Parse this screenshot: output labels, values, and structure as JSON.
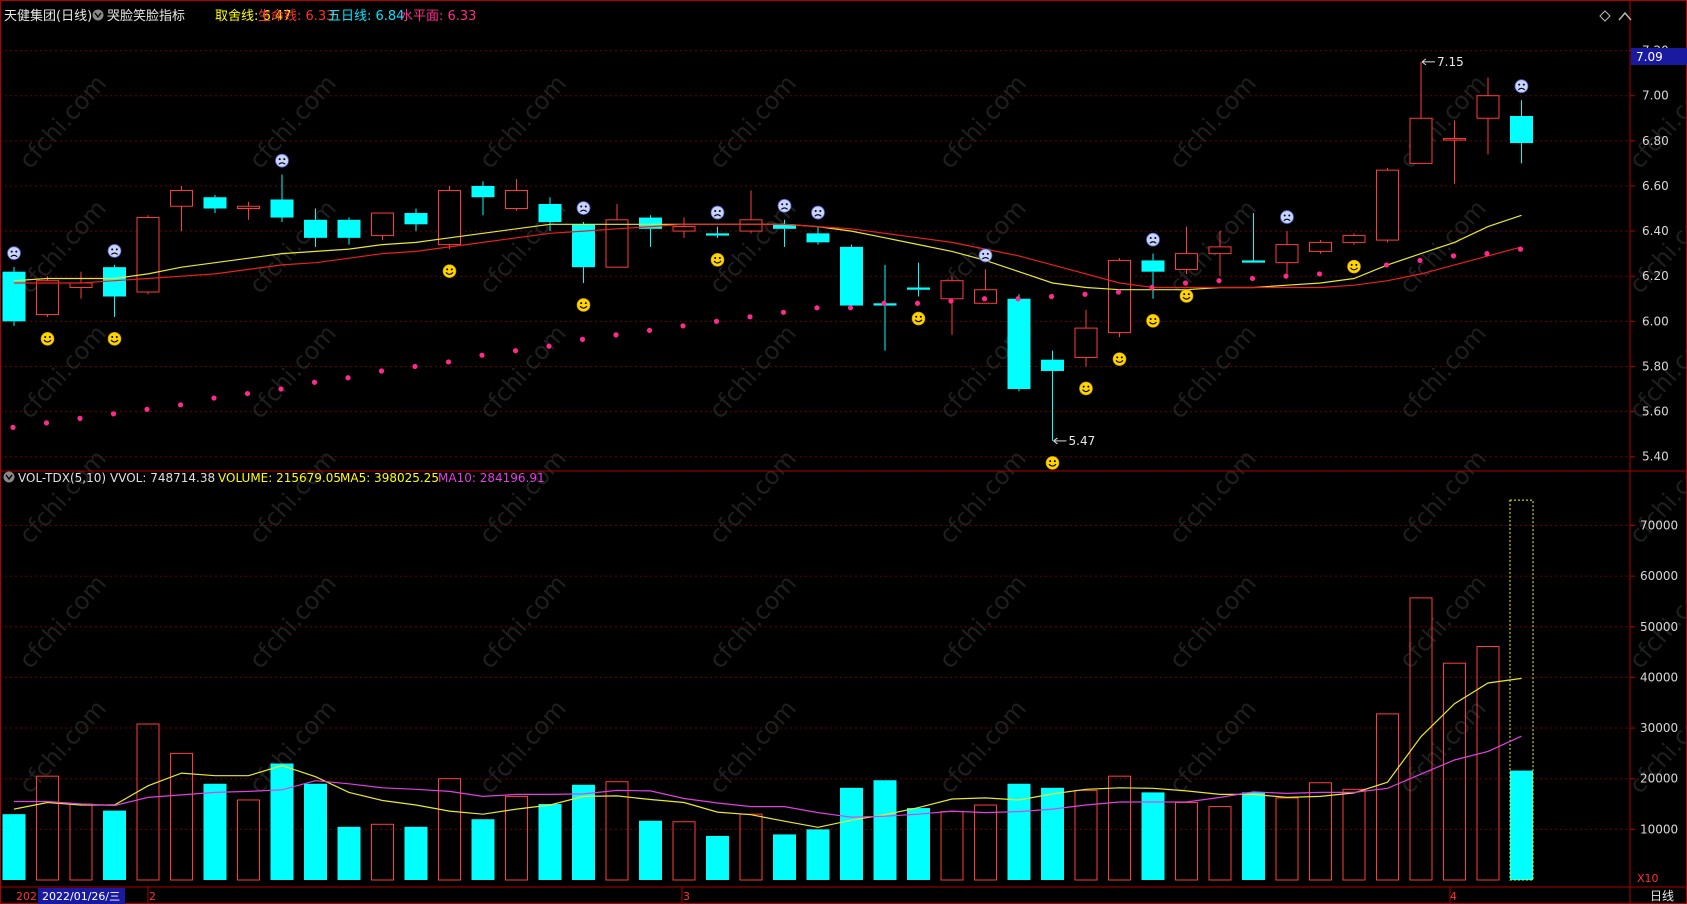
{
  "header": {
    "stock_title": "天健集团(日线)",
    "indicator_name": "哭脸笑脸指标",
    "params": [
      {
        "label": "取舍线: 6.47",
        "color": "#ffff00"
      },
      {
        "label": "生命线: 6.33",
        "color": "#ff3030"
      },
      {
        "label": "五日线: 6.84",
        "color": "#00e5ff"
      },
      {
        "label": "水平面: 6.33",
        "color": "#ff2a8c"
      }
    ]
  },
  "volume_header": {
    "name": "VOL-TDX(5,10)",
    "vvol": "VVOL: 748714.38",
    "volume": "VOLUME: 215679.05",
    "ma5": "MA5: 398025.25",
    "ma10": "MA10: 284196.91"
  },
  "price_badge": "7.09",
  "x10_label": "X10",
  "bottom_bar": {
    "year_label": "2022",
    "date_label": "2022/01/26/三",
    "month_2": "2",
    "month_3": "3",
    "month_4": "4",
    "period_button": "日线"
  },
  "colors": {
    "up": "#ff3c3c",
    "down": "#00ffff",
    "ma_yellow": "#e8e830",
    "ma_red": "#e82020",
    "dot": "#ff2a8c",
    "grid": "#6a0000",
    "axis": "#b00000"
  },
  "chart_data": [
    {
      "type": "candlestick",
      "y_ticks": [
        5.4,
        5.6,
        5.8,
        6.0,
        6.2,
        6.4,
        6.6,
        6.8,
        7.0,
        7.2
      ],
      "ylim": [
        5.35,
        7.3
      ],
      "annotations": [
        {
          "text": "7.15",
          "value": 7.15
        },
        {
          "text": "5.47",
          "value": 5.47
        }
      ],
      "candles": [
        {
          "o": 6.22,
          "c": 6.0,
          "h": 6.24,
          "l": 5.98
        },
        {
          "o": 6.03,
          "c": 6.18,
          "h": 6.2,
          "l": 6.02
        },
        {
          "o": 6.15,
          "c": 6.17,
          "h": 6.22,
          "l": 6.1
        },
        {
          "o": 6.24,
          "c": 6.11,
          "h": 6.25,
          "l": 6.02
        },
        {
          "o": 6.13,
          "c": 6.46,
          "h": 6.47,
          "l": 6.12
        },
        {
          "o": 6.51,
          "c": 6.58,
          "h": 6.6,
          "l": 6.4
        },
        {
          "o": 6.55,
          "c": 6.5,
          "h": 6.56,
          "l": 6.48
        },
        {
          "o": 6.5,
          "c": 6.51,
          "h": 6.53,
          "l": 6.45
        },
        {
          "o": 6.54,
          "c": 6.46,
          "h": 6.65,
          "l": 6.44
        },
        {
          "o": 6.45,
          "c": 6.37,
          "h": 6.5,
          "l": 6.33
        },
        {
          "o": 6.45,
          "c": 6.37,
          "h": 6.46,
          "l": 6.34
        },
        {
          "o": 6.38,
          "c": 6.48,
          "h": 6.48,
          "l": 6.36
        },
        {
          "o": 6.48,
          "c": 6.43,
          "h": 6.5,
          "l": 6.4
        },
        {
          "o": 6.34,
          "c": 6.58,
          "h": 6.6,
          "l": 6.32
        },
        {
          "o": 6.6,
          "c": 6.55,
          "h": 6.62,
          "l": 6.47
        },
        {
          "o": 6.5,
          "c": 6.58,
          "h": 6.63,
          "l": 6.49
        },
        {
          "o": 6.52,
          "c": 6.44,
          "h": 6.55,
          "l": 6.4
        },
        {
          "o": 6.43,
          "c": 6.24,
          "h": 6.44,
          "l": 6.17
        },
        {
          "o": 6.24,
          "c": 6.45,
          "h": 6.52,
          "l": 6.24
        },
        {
          "o": 6.46,
          "c": 6.41,
          "h": 6.47,
          "l": 6.33
        },
        {
          "o": 6.4,
          "c": 6.42,
          "h": 6.46,
          "l": 6.37
        },
        {
          "o": 6.39,
          "c": 6.38,
          "h": 6.42,
          "l": 6.37
        },
        {
          "o": 6.4,
          "c": 6.45,
          "h": 6.58,
          "l": 6.39
        },
        {
          "o": 6.43,
          "c": 6.41,
          "h": 6.45,
          "l": 6.33
        },
        {
          "o": 6.39,
          "c": 6.35,
          "h": 6.42,
          "l": 6.34
        },
        {
          "o": 6.33,
          "c": 6.07,
          "h": 6.34,
          "l": 6.06
        },
        {
          "o": 6.08,
          "c": 6.07,
          "h": 6.25,
          "l": 5.87
        },
        {
          "o": 6.15,
          "c": 6.14,
          "h": 6.26,
          "l": 6.11
        },
        {
          "o": 6.1,
          "c": 6.18,
          "h": 6.2,
          "l": 5.94
        },
        {
          "o": 6.08,
          "c": 6.14,
          "h": 6.23,
          "l": 6.08
        },
        {
          "o": 6.1,
          "c": 5.7,
          "h": 6.12,
          "l": 5.69
        },
        {
          "o": 5.83,
          "c": 5.78,
          "h": 5.87,
          "l": 5.47
        },
        {
          "o": 5.84,
          "c": 5.97,
          "h": 6.05,
          "l": 5.8
        },
        {
          "o": 5.95,
          "c": 6.27,
          "h": 6.28,
          "l": 5.93
        },
        {
          "o": 6.27,
          "c": 6.22,
          "h": 6.3,
          "l": 6.1
        },
        {
          "o": 6.23,
          "c": 6.3,
          "h": 6.42,
          "l": 6.21
        },
        {
          "o": 6.3,
          "c": 6.33,
          "h": 6.4,
          "l": 6.2
        },
        {
          "o": 6.27,
          "c": 6.26,
          "h": 6.48,
          "l": 6.26
        },
        {
          "o": 6.26,
          "c": 6.34,
          "h": 6.4,
          "l": 6.2
        },
        {
          "o": 6.31,
          "c": 6.35,
          "h": 6.36,
          "l": 6.3
        },
        {
          "o": 6.35,
          "c": 6.38,
          "h": 6.39,
          "l": 6.34
        },
        {
          "o": 6.36,
          "c": 6.67,
          "h": 6.68,
          "l": 6.35
        },
        {
          "o": 6.7,
          "c": 6.9,
          "h": 7.15,
          "l": 6.7
        },
        {
          "o": 6.81,
          "c": 6.81,
          "h": 6.89,
          "l": 6.61
        },
        {
          "o": 6.9,
          "c": 7.0,
          "h": 7.08,
          "l": 6.74
        },
        {
          "o": 6.91,
          "c": 6.79,
          "h": 6.98,
          "l": 6.7
        }
      ],
      "ma_yellow": [
        6.18,
        6.19,
        6.19,
        6.19,
        6.21,
        6.24,
        6.26,
        6.28,
        6.3,
        6.31,
        6.32,
        6.34,
        6.35,
        6.37,
        6.39,
        6.41,
        6.43,
        6.43,
        6.43,
        6.43,
        6.43,
        6.43,
        6.43,
        6.43,
        6.42,
        6.4,
        6.37,
        6.34,
        6.31,
        6.27,
        6.22,
        6.17,
        6.15,
        6.14,
        6.14,
        6.14,
        6.15,
        6.15,
        6.16,
        6.17,
        6.19,
        6.25,
        6.3,
        6.35,
        6.42,
        6.47
      ],
      "ma_red": [
        6.17,
        6.17,
        6.17,
        6.18,
        6.19,
        6.2,
        6.21,
        6.23,
        6.25,
        6.26,
        6.28,
        6.3,
        6.31,
        6.33,
        6.35,
        6.37,
        6.39,
        6.4,
        6.41,
        6.42,
        6.43,
        6.43,
        6.43,
        6.43,
        6.42,
        6.41,
        6.39,
        6.37,
        6.35,
        6.32,
        6.29,
        6.25,
        6.21,
        6.17,
        6.15,
        6.15,
        6.15,
        6.15,
        6.15,
        6.15,
        6.16,
        6.18,
        6.21,
        6.25,
        6.29,
        6.33
      ],
      "dots": [
        5.53,
        5.55,
        5.57,
        5.59,
        5.61,
        5.63,
        5.66,
        5.68,
        5.7,
        5.73,
        5.75,
        5.78,
        5.8,
        5.82,
        5.85,
        5.87,
        5.89,
        5.92,
        5.94,
        5.96,
        5.98,
        6.0,
        6.02,
        6.04,
        6.06,
        6.06,
        6.08,
        6.08,
        6.09,
        6.1,
        6.1,
        6.11,
        6.12,
        6.13,
        6.15,
        6.17,
        6.18,
        6.19,
        6.2,
        6.21,
        6.23,
        6.25,
        6.27,
        6.29,
        6.3,
        6.32
      ],
      "smiles": [
        1,
        3,
        13,
        17,
        21,
        27,
        31,
        32,
        33,
        34,
        35,
        40
      ],
      "frowns": [
        0,
        3,
        8,
        17,
        21,
        23,
        24,
        29,
        34,
        38,
        45
      ]
    },
    {
      "type": "bar",
      "y_ticks": [
        10000,
        20000,
        30000,
        40000,
        50000,
        60000,
        70000
      ],
      "ylim": [
        0,
        77000
      ],
      "volumes": [
        13000,
        20500,
        15000,
        13700,
        30800,
        25000,
        19000,
        15800,
        23000,
        19000,
        10500,
        11000,
        10500,
        20000,
        12000,
        16500,
        15000,
        18800,
        19400,
        11700,
        11500,
        8700,
        13000,
        9000,
        10000,
        18200,
        19700,
        14200,
        13500,
        14800,
        19000,
        18200,
        17700,
        20500,
        17300,
        15300,
        14500,
        17300,
        16200,
        19200,
        17900,
        32800,
        55700,
        42800,
        46100,
        21600
      ],
      "vol_ma5": [
        14000,
        15300,
        14800,
        14800,
        18600,
        21100,
        20600,
        20600,
        22600,
        20400,
        17300,
        15700,
        14800,
        13600,
        13000,
        14000,
        14800,
        16500,
        16600,
        15900,
        15300,
        13400,
        12900,
        11600,
        10400,
        11800,
        12900,
        14300,
        16000,
        16200,
        15800,
        17000,
        17900,
        18200,
        18100,
        17600,
        16900,
        16900,
        16300,
        16500,
        17200,
        19300,
        28300,
        34800,
        38900,
        39800
      ],
      "vol_ma10": [
        15500,
        15500,
        15000,
        14700,
        16300,
        16800,
        17300,
        17500,
        17800,
        19600,
        19000,
        18200,
        17900,
        17500,
        16500,
        16900,
        16900,
        17000,
        17700,
        17600,
        16100,
        15200,
        14500,
        14500,
        13300,
        12400,
        12600,
        13000,
        13600,
        13300,
        13500,
        14000,
        14800,
        15400,
        15400,
        15400,
        16300,
        17400,
        17100,
        17300,
        17300,
        18100,
        20900,
        23700,
        25400,
        28400
      ],
      "highlight_index": 44,
      "highlight_value": 75000
    }
  ]
}
